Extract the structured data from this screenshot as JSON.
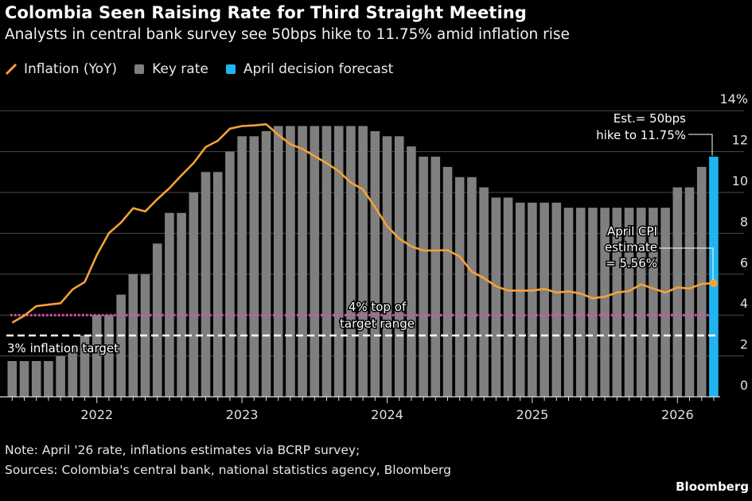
{
  "header": {
    "title": "Colombia Seen Raising Rate for Third Straight Meeting",
    "subtitle": "Analysts in central bank survey see 50bps hike to 11.75% amid inflation rise"
  },
  "legend": [
    {
      "label": "Inflation (YoY)",
      "color": "#f5a235",
      "icon": "line-slash"
    },
    {
      "label": "Key rate",
      "color": "#7f7f7f",
      "icon": "square"
    },
    {
      "label": "April decision forecast",
      "color": "#1fb4f2",
      "icon": "square"
    }
  ],
  "chart_data": {
    "type": "bar+line",
    "ylim": [
      0,
      14
    ],
    "y_ticks": [
      "0",
      "2",
      "4",
      "6",
      "8",
      "10",
      "12",
      "14%"
    ],
    "y_tick_values": [
      0,
      2,
      4,
      6,
      8,
      10,
      12,
      14
    ],
    "x_ticks": [
      "2022",
      "2023",
      "2024",
      "2025",
      "2026"
    ],
    "grid": true,
    "legend_position": "top-left",
    "dates": [
      "2021-06",
      "2021-07",
      "2021-08",
      "2021-09",
      "2021-10",
      "2021-11",
      "2021-12",
      "2022-01",
      "2022-02",
      "2022-03",
      "2022-04",
      "2022-05",
      "2022-06",
      "2022-07",
      "2022-08",
      "2022-09",
      "2022-10",
      "2022-11",
      "2022-12",
      "2023-01",
      "2023-02",
      "2023-03",
      "2023-04",
      "2023-05",
      "2023-06",
      "2023-07",
      "2023-08",
      "2023-09",
      "2023-10",
      "2023-11",
      "2023-12",
      "2024-01",
      "2024-02",
      "2024-03",
      "2024-04",
      "2024-05",
      "2024-06",
      "2024-07",
      "2024-08",
      "2024-09",
      "2024-10",
      "2024-11",
      "2024-12",
      "2025-01",
      "2025-02",
      "2025-03",
      "2025-04",
      "2025-05",
      "2025-06",
      "2025-07",
      "2025-08",
      "2025-09",
      "2025-10",
      "2025-11",
      "2025-12",
      "2026-01",
      "2026-02",
      "2026-03",
      "2026-04"
    ],
    "series": [
      {
        "name": "Key rate",
        "type": "bar",
        "color": "#7f7f7f",
        "values": [
          1.75,
          1.75,
          1.75,
          1.75,
          2.0,
          2.5,
          3.0,
          4.0,
          4.0,
          5.0,
          6.0,
          6.0,
          7.5,
          9.0,
          9.0,
          10.0,
          11.0,
          11.0,
          12.0,
          12.75,
          12.75,
          13.0,
          13.25,
          13.25,
          13.25,
          13.25,
          13.25,
          13.25,
          13.25,
          13.25,
          13.0,
          12.75,
          12.75,
          12.25,
          11.75,
          11.75,
          11.25,
          10.75,
          10.75,
          10.25,
          9.75,
          9.75,
          9.5,
          9.5,
          9.5,
          9.5,
          9.25,
          9.25,
          9.25,
          9.25,
          9.25,
          9.25,
          9.25,
          9.25,
          9.25,
          10.25,
          10.25,
          11.25,
          null
        ]
      },
      {
        "name": "April decision forecast",
        "type": "bar",
        "color": "#1fb4f2",
        "values_by_date": {
          "2026-04": 11.75
        }
      },
      {
        "name": "Inflation (YoY)",
        "type": "line",
        "color": "#f5a235",
        "values": [
          3.63,
          3.97,
          4.44,
          4.51,
          4.58,
          5.26,
          5.62,
          6.94,
          8.01,
          8.53,
          9.23,
          9.07,
          9.67,
          10.21,
          10.84,
          11.44,
          12.22,
          12.53,
          13.12,
          13.25,
          13.28,
          13.34,
          12.82,
          12.36,
          12.13,
          11.78,
          11.43,
          11.04,
          10.48,
          10.15,
          9.28,
          8.35,
          7.74,
          7.36,
          7.16,
          7.16,
          7.18,
          6.86,
          6.12,
          5.81,
          5.41,
          5.2,
          5.2,
          5.2,
          5.28,
          5.1,
          5.16,
          5.05,
          4.82,
          4.9,
          5.1,
          5.18,
          5.5,
          5.3,
          5.1,
          5.35,
          5.3,
          5.53,
          5.56
        ]
      }
    ],
    "reference_lines": [
      {
        "value": 4,
        "label_lines": [
          "4% top of",
          "target range"
        ],
        "color": "#e84bb5",
        "style": "dotted"
      },
      {
        "value": 3,
        "label_lines": [
          "3% inflation target"
        ],
        "color": "#ffffff",
        "style": "dashed"
      }
    ],
    "annotations": [
      {
        "target": "2026-04 key rate",
        "lines": [
          "Est.= 50bps",
          "hike to 11.75%"
        ]
      },
      {
        "target": "2026-04 inflation",
        "lines": [
          "April CPI",
          "estimate",
          "= 5.56%"
        ]
      }
    ]
  },
  "footer": {
    "note": "Note: April '26 rate, inflations estimates via BCRP survey;",
    "sources": "Sources: Colombia's central bank, national statistics agency, Bloomberg",
    "brand": "Bloomberg"
  }
}
